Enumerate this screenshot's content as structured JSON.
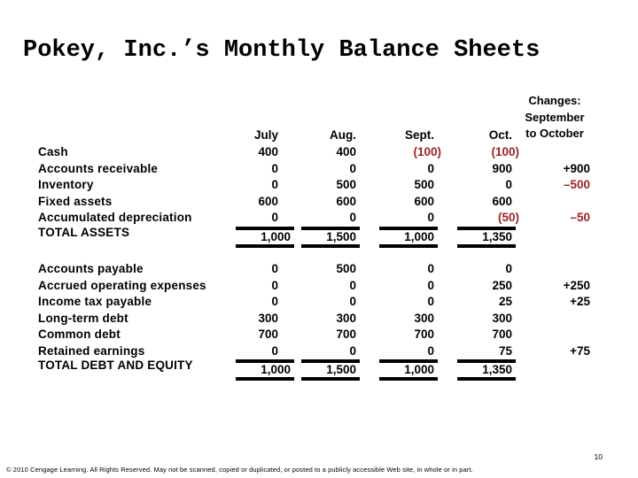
{
  "slide": {
    "title": "Pokey, Inc.’s Monthly Balance Sheets",
    "page_number": "10",
    "footer": "© 2010 Cengage Learning. All Rights Reserved. May not be scanned, copied or duplicated, or posted to a publicly accessible Web site, in whole or in part."
  },
  "colors": {
    "negative": "#9E2222",
    "text": "#000000",
    "background": "#FFFFFF"
  },
  "table": {
    "changes_header": {
      "lines": [
        "Changes:",
        "September",
        "to October"
      ]
    },
    "columns": [
      "July",
      "Aug.",
      "Sept.",
      "Oct."
    ],
    "assets": {
      "rows": [
        {
          "label": "Cash",
          "values": [
            "400",
            "400",
            "(100)",
            "(100)"
          ],
          "change": ""
        },
        {
          "label": "Accounts receivable",
          "values": [
            "0",
            "0",
            "0",
            "900"
          ],
          "change": "+900"
        },
        {
          "label": "Inventory",
          "values": [
            "0",
            "500",
            "500",
            "0"
          ],
          "change": "–500"
        },
        {
          "label": "Fixed assets",
          "values": [
            "600",
            "600",
            "600",
            "600"
          ],
          "change": ""
        },
        {
          "label": "Accumulated depreciation",
          "values": [
            "0",
            "0",
            "0",
            "(50)"
          ],
          "change": "–50"
        }
      ],
      "total": {
        "label": "TOTAL ASSETS",
        "values": [
          "1,000",
          "1,500",
          "1,000",
          "1,350"
        ],
        "change": ""
      }
    },
    "liabilities": {
      "rows": [
        {
          "label": "Accounts payable",
          "values": [
            "0",
            "500",
            "0",
            "0"
          ],
          "change": ""
        },
        {
          "label": "Accrued operating expenses",
          "values": [
            "0",
            "0",
            "0",
            "250"
          ],
          "change": "+250"
        },
        {
          "label": "Income tax payable",
          "values": [
            "0",
            "0",
            "0",
            "25"
          ],
          "change": "+25"
        },
        {
          "label": "Long-term debt",
          "values": [
            "300",
            "300",
            "300",
            "300"
          ],
          "change": ""
        },
        {
          "label": "Common debt",
          "values": [
            "700",
            "700",
            "700",
            "700"
          ],
          "change": ""
        },
        {
          "label": "Retained earnings",
          "values": [
            "0",
            "0",
            "0",
            "75"
          ],
          "change": "+75"
        }
      ],
      "total": {
        "label": "TOTAL DEBT AND EQUITY",
        "values": [
          "1,000",
          "1,500",
          "1,000",
          "1,350"
        ],
        "change": ""
      }
    }
  }
}
